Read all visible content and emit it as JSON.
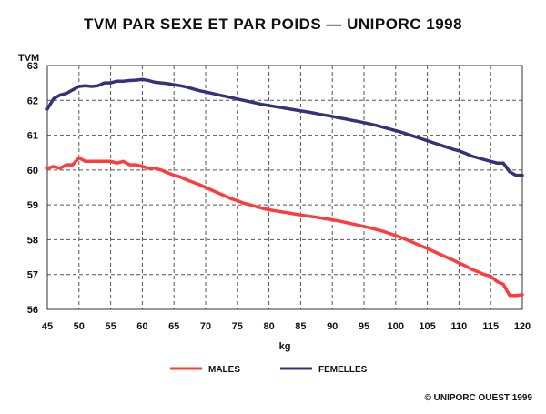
{
  "chart_data": {
    "type": "line",
    "title": "TVM PAR SEXE ET PAR POIDS — UNIPORC 1998",
    "ylabel": "TVM",
    "xlabel": "kg",
    "xlim": [
      45,
      120
    ],
    "ylim": [
      56,
      63
    ],
    "xticks": [
      "45",
      "50",
      "55",
      "60",
      "65",
      "70",
      "75",
      "80",
      "85",
      "90",
      "95",
      "100",
      "105",
      "110",
      "115",
      "120"
    ],
    "yticks": [
      "56",
      "57",
      "58",
      "59",
      "60",
      "61",
      "62",
      "63"
    ],
    "grid": true,
    "legend_position": "bottom-center",
    "x": [
      45,
      46,
      47,
      48,
      49,
      50,
      51,
      52,
      53,
      54,
      55,
      56,
      57,
      58,
      59,
      60,
      61,
      62,
      63,
      64,
      65,
      66,
      67,
      68,
      69,
      70,
      71,
      72,
      73,
      74,
      75,
      76,
      77,
      78,
      79,
      80,
      81,
      82,
      83,
      84,
      85,
      86,
      87,
      88,
      89,
      90,
      91,
      92,
      93,
      94,
      95,
      96,
      97,
      98,
      99,
      100,
      101,
      102,
      103,
      104,
      105,
      106,
      107,
      108,
      109,
      110,
      111,
      112,
      113,
      114,
      115,
      116,
      117,
      118,
      119,
      120
    ],
    "series": [
      {
        "name": "MALES",
        "color": "#ff3b3b",
        "values": [
          60.05,
          60.1,
          60.05,
          60.15,
          60.15,
          60.35,
          60.25,
          60.25,
          60.25,
          60.25,
          60.25,
          60.2,
          60.25,
          60.15,
          60.15,
          60.1,
          60.05,
          60.05,
          60.0,
          59.92,
          59.85,
          59.8,
          59.72,
          59.65,
          59.58,
          59.5,
          59.42,
          59.34,
          59.26,
          59.18,
          59.12,
          59.05,
          59.0,
          58.95,
          58.9,
          58.86,
          58.83,
          58.8,
          58.77,
          58.74,
          58.71,
          58.68,
          58.66,
          58.63,
          58.6,
          58.57,
          58.54,
          58.5,
          58.46,
          58.42,
          58.38,
          58.34,
          58.29,
          58.24,
          58.18,
          58.12,
          58.05,
          57.98,
          57.9,
          57.82,
          57.75,
          57.66,
          57.58,
          57.5,
          57.42,
          57.33,
          57.25,
          57.15,
          57.08,
          57.0,
          56.95,
          56.8,
          56.72,
          56.4,
          56.4,
          56.42
        ]
      },
      {
        "name": "FEMELLES",
        "color": "#33337a",
        "values": [
          61.75,
          62.05,
          62.15,
          62.2,
          62.3,
          62.4,
          62.42,
          62.4,
          62.42,
          62.5,
          62.5,
          62.55,
          62.55,
          62.57,
          62.58,
          62.6,
          62.57,
          62.52,
          62.5,
          62.48,
          62.45,
          62.42,
          62.38,
          62.33,
          62.28,
          62.24,
          62.2,
          62.16,
          62.12,
          62.08,
          62.04,
          62.0,
          61.96,
          61.92,
          61.88,
          61.85,
          61.82,
          61.79,
          61.76,
          61.73,
          61.7,
          61.67,
          61.64,
          61.6,
          61.57,
          61.54,
          61.5,
          61.47,
          61.43,
          61.4,
          61.36,
          61.32,
          61.28,
          61.23,
          61.18,
          61.13,
          61.08,
          61.02,
          60.96,
          60.9,
          60.84,
          60.78,
          60.72,
          60.66,
          60.6,
          60.55,
          60.48,
          60.4,
          60.35,
          60.3,
          60.25,
          60.2,
          60.2,
          59.95,
          59.85,
          59.85
        ]
      }
    ]
  },
  "copyright": "© UNIPORC OUEST 1999"
}
